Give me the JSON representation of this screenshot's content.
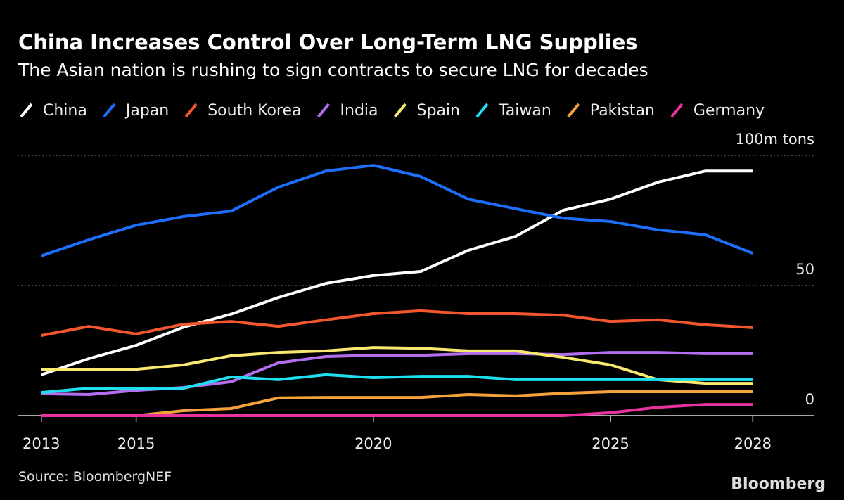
{
  "chart_data": {
    "type": "line",
    "title": "China Increases Control Over Long-Term LNG Supplies",
    "subtitle": "The Asian nation is rushing to sign contracts to secure LNG for decades",
    "x": [
      2013,
      2014,
      2015,
      2016,
      2017,
      2018,
      2019,
      2020,
      2021,
      2022,
      2023,
      2024,
      2025,
      2026,
      2027,
      2028
    ],
    "series": [
      {
        "name": "China",
        "color": "#ffffff",
        "values": [
          15.7,
          21.9,
          27,
          34,
          39,
          45.4,
          50.8,
          53.8,
          55.4,
          63.5,
          68.9,
          78.9,
          83.2,
          89.7,
          94,
          94
        ]
      },
      {
        "name": "Japan",
        "color": "#1f6fff",
        "values": [
          61.4,
          67.6,
          73.2,
          76.5,
          78.6,
          87.8,
          94,
          96.2,
          91.9,
          83.2,
          79.5,
          75.9,
          74.6,
          71.4,
          69.5,
          62.4
        ]
      },
      {
        "name": "South Korea",
        "color": "#f4572d",
        "values": [
          30.8,
          34.3,
          31.4,
          35.1,
          36.2,
          34.3,
          36.8,
          39.2,
          40.3,
          39.2,
          39.2,
          38.6,
          36.2,
          36.8,
          34.9,
          33.8
        ]
      },
      {
        "name": "India",
        "color": "#b36ff0",
        "values": [
          8.4,
          8.1,
          9.7,
          10.8,
          13,
          20.3,
          22.7,
          23.2,
          23.2,
          23.8,
          23.8,
          23.5,
          24.3,
          24.3,
          23.8,
          23.8
        ]
      },
      {
        "name": "Spain",
        "color": "#f9e96f",
        "values": [
          17.8,
          17.8,
          17.8,
          19.5,
          23,
          24.3,
          24.9,
          26.2,
          25.9,
          24.9,
          24.9,
          22.4,
          19.5,
          13.8,
          12.4,
          12.4
        ]
      },
      {
        "name": "Taiwan",
        "color": "#1ee0f0",
        "values": [
          8.9,
          10.5,
          10.5,
          10.5,
          14.9,
          13.8,
          15.7,
          14.6,
          15.1,
          15.1,
          13.8,
          13.8,
          13.8,
          13.8,
          13.8,
          13.8
        ]
      },
      {
        "name": "Pakistan",
        "color": "#f5a23c",
        "values": [
          null,
          null,
          0,
          1.9,
          2.7,
          6.8,
          7,
          7,
          7,
          8.1,
          7.6,
          8.6,
          9.2,
          9.2,
          9.2,
          9.2
        ]
      },
      {
        "name": "Germany",
        "color": "#e8339e",
        "values": [
          0,
          0,
          0,
          0,
          0,
          0,
          0,
          0,
          0,
          0,
          0,
          0,
          1.1,
          3.2,
          4.3,
          4.3
        ]
      }
    ],
    "xlim": [
      2012.5,
      2029.3
    ],
    "xticks": [
      2013,
      2015,
      2020,
      2025,
      2028
    ],
    "ylim": [
      0,
      100
    ],
    "yticks": [
      0,
      50,
      {
        "value": 100,
        "label": "100m tons"
      }
    ],
    "grid": true,
    "source": "Source: BloombergNEF",
    "branding": "Bloomberg"
  }
}
